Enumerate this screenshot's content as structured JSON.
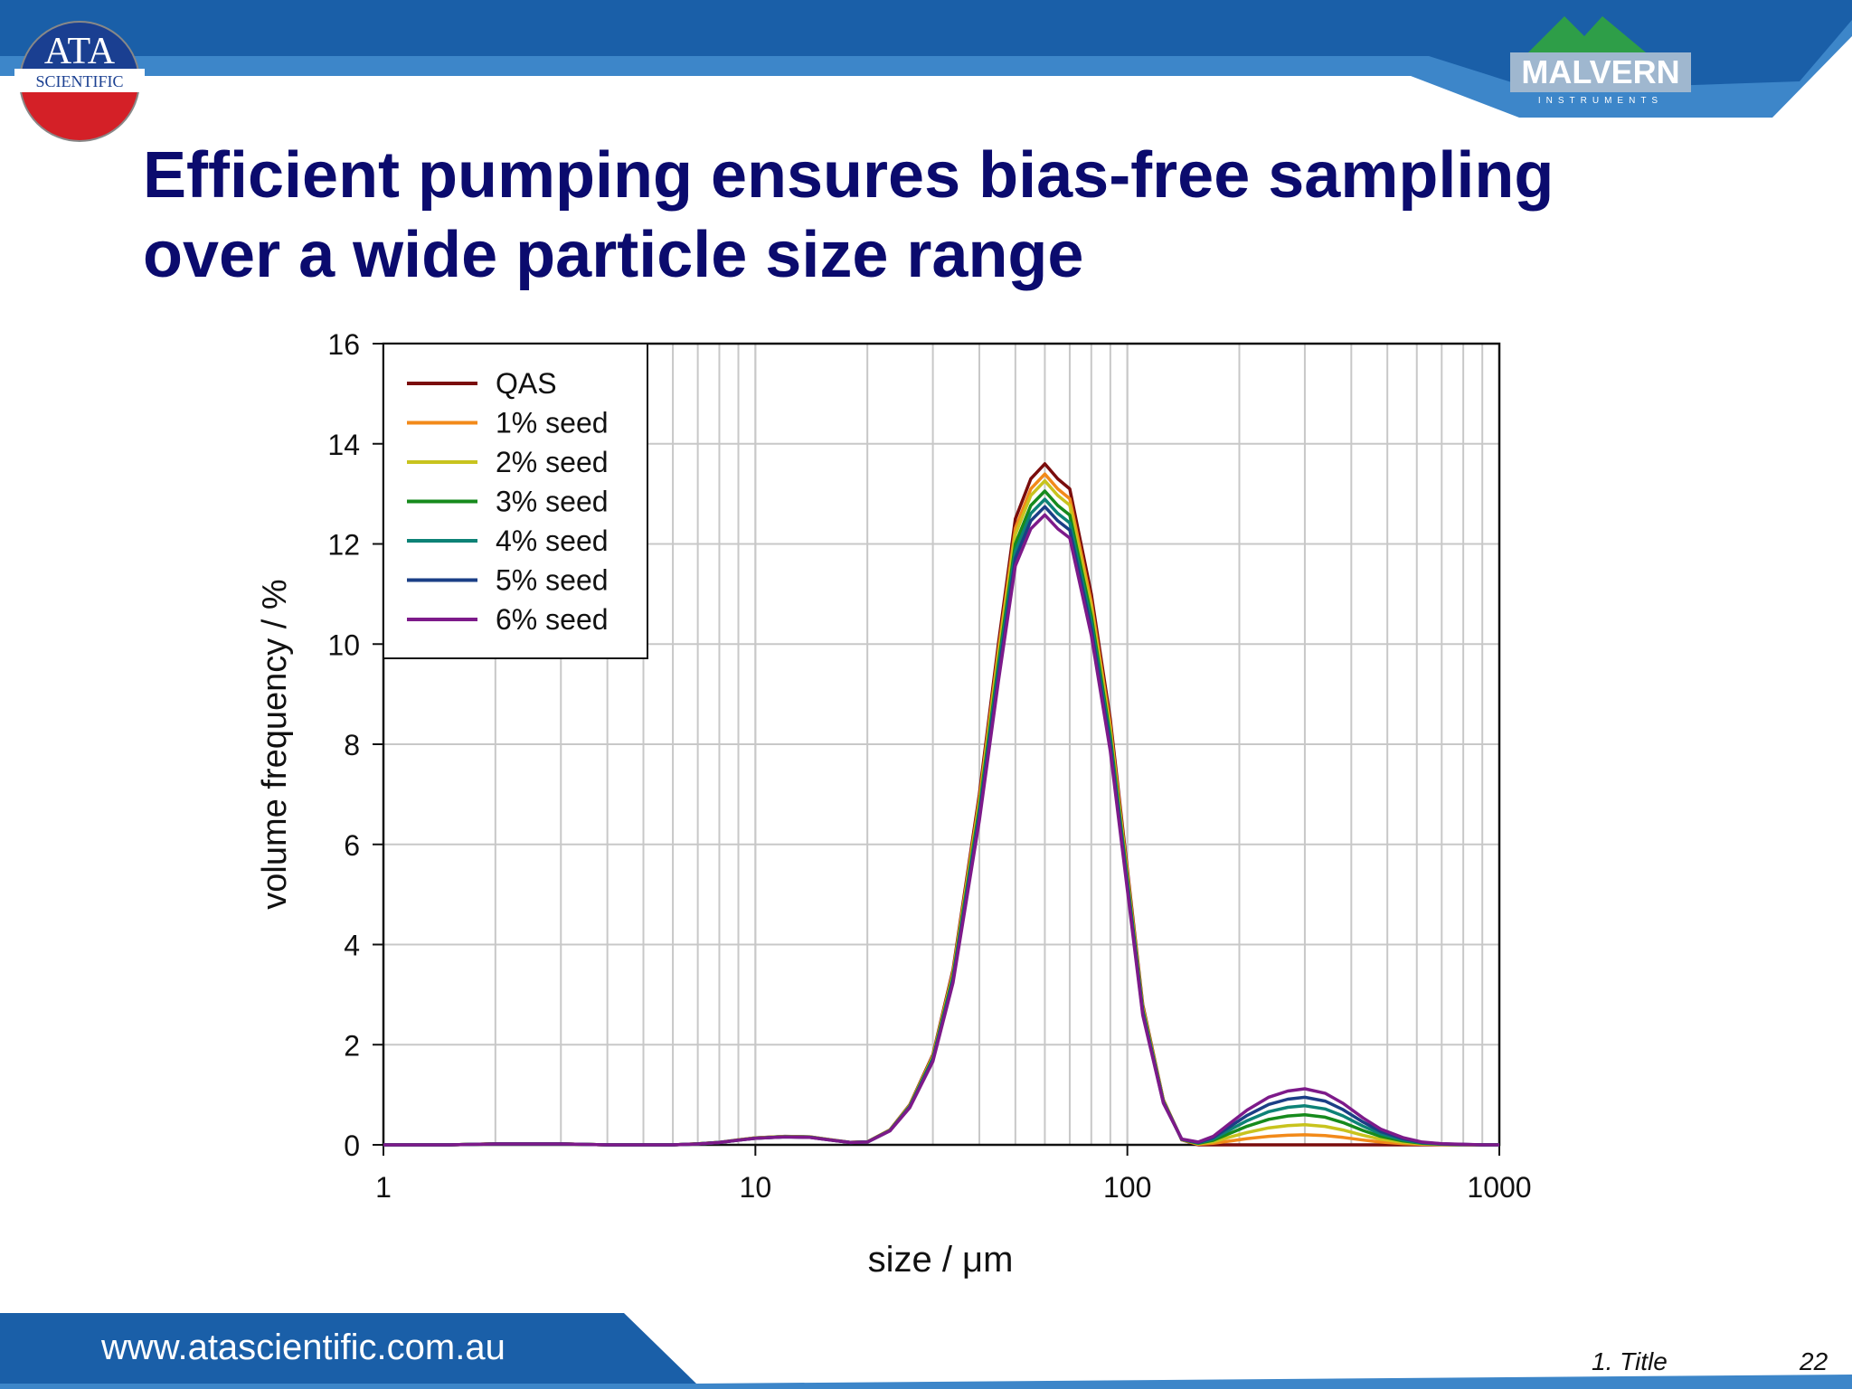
{
  "slide": {
    "title_lines": [
      "Efficient pumping ensures bias-free sampling",
      "over a wide particle size range"
    ],
    "ata_logo": {
      "line1": "ATA",
      "line2": "SCIENTIFIC"
    },
    "malvern_logo": {
      "text": "MALVERN",
      "sub": "INSTRUMENTS"
    },
    "footer_url": "www.atascientific.com.au",
    "footer_section": "1. Title",
    "page_number": "22",
    "colors": {
      "title": "#0b0b6e",
      "banner": "#1a5fa8",
      "banner_light": "#3d86c9"
    }
  },
  "chart_data": {
    "type": "line",
    "xlabel": "size / μm",
    "ylabel": "volume frequency / %",
    "x_scale": "log",
    "xlim": [
      1,
      1000
    ],
    "ylim": [
      0,
      16
    ],
    "x_ticks": [
      1,
      10,
      100,
      1000
    ],
    "x_tick_labels": [
      "1",
      "10",
      "100",
      "1000"
    ],
    "y_ticks": [
      0,
      2,
      4,
      6,
      8,
      10,
      12,
      14,
      16
    ],
    "grid": true,
    "legend_position": "top-left",
    "x": [
      1,
      1.5,
      2,
      3,
      4,
      5,
      6,
      7,
      8,
      9,
      10,
      12,
      14,
      16,
      18,
      20,
      23,
      26,
      30,
      34,
      40,
      45,
      50,
      55,
      60,
      65,
      70,
      80,
      90,
      100,
      110,
      125,
      140,
      155,
      170,
      190,
      210,
      240,
      270,
      300,
      340,
      380,
      430,
      480,
      550,
      620,
      700,
      800,
      900,
      1000
    ],
    "base": [
      0,
      0,
      0.02,
      0.02,
      0,
      0,
      0,
      0.02,
      0.05,
      0.1,
      0.14,
      0.17,
      0.16,
      0.1,
      0.05,
      0.06,
      0.3,
      0.8,
      1.8,
      3.5,
      7.0,
      10.0,
      12.5,
      13.3,
      13.6,
      13.3,
      13.1,
      11.0,
      8.5,
      5.5,
      2.8,
      0.9,
      0.1,
      0,
      0,
      0,
      0,
      0,
      0,
      0,
      0,
      0,
      0,
      0,
      0,
      0,
      0,
      0,
      0,
      0
    ],
    "seed_shape": [
      0,
      0,
      0,
      0,
      0,
      0,
      0,
      0,
      0,
      0,
      0,
      0,
      0,
      0,
      0,
      0,
      0,
      0,
      0,
      0,
      0,
      0,
      0,
      0,
      0,
      0,
      0,
      0,
      0,
      0,
      0,
      0,
      0.02,
      0.05,
      0.15,
      0.4,
      0.62,
      0.85,
      0.96,
      1.0,
      0.92,
      0.74,
      0.48,
      0.28,
      0.13,
      0.05,
      0.02,
      0.01,
      0,
      0
    ],
    "series": [
      {
        "name": "QAS",
        "color": "#7a0c0c",
        "seed_peak": 0.0,
        "main_scale": 1.0
      },
      {
        "name": "1% seed",
        "color": "#f28a1a",
        "seed_peak": 0.2,
        "main_scale": 0.985
      },
      {
        "name": "2% seed",
        "color": "#c8c31e",
        "seed_peak": 0.4,
        "main_scale": 0.975
      },
      {
        "name": "3% seed",
        "color": "#168a1c",
        "seed_peak": 0.6,
        "main_scale": 0.96
      },
      {
        "name": "4% seed",
        "color": "#0d8276",
        "seed_peak": 0.78,
        "main_scale": 0.948
      },
      {
        "name": "5% seed",
        "color": "#1b3f86",
        "seed_peak": 0.95,
        "main_scale": 0.937
      },
      {
        "name": "6% seed",
        "color": "#7d1a8a",
        "seed_peak": 1.12,
        "main_scale": 0.925
      }
    ]
  }
}
